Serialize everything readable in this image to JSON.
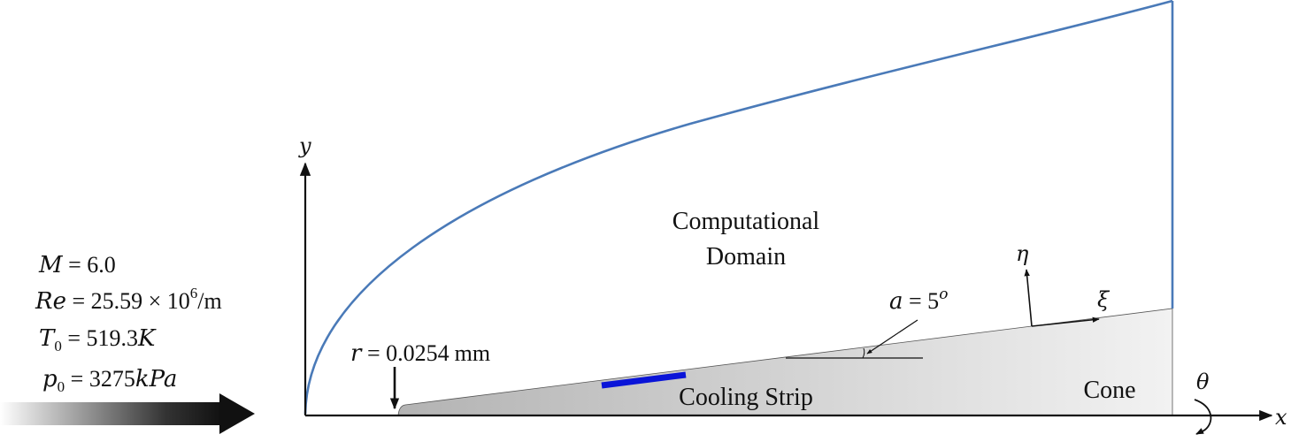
{
  "diagram": {
    "axes": {
      "x": "x",
      "y": "y",
      "theta": "θ"
    },
    "flow_conditions": {
      "mach": {
        "symbol": "M",
        "rest": " = 6.0"
      },
      "reynolds": {
        "symbol": "Re",
        "rest": " = 25.59 × 10",
        "exp": "6",
        "unit": "/m"
      },
      "temperature": {
        "symbol": "T",
        "sub": "0",
        "rest": " = 519.3",
        "unit": "K"
      },
      "pressure": {
        "symbol": "p",
        "sub": "0",
        "rest": " = 3275",
        "unit": "kPa"
      }
    },
    "nose_radius": {
      "symbol": "r",
      "rest": " = 0.0254",
      "unit": "mm"
    },
    "half_angle": {
      "symbol": "a",
      "rest": " = 5",
      "exp": "o"
    },
    "body_coords": {
      "xi": "ξ",
      "eta": "η"
    },
    "labels": {
      "domain_line1": "Computational",
      "domain_line2": "Domain",
      "cooling_strip": "Cooling Strip",
      "cone": "Cone"
    },
    "colors": {
      "domain_boundary": "#4a7ab8",
      "cooling_strip": "#0a14d8",
      "cone_fill_dark": "#b8b8b8",
      "cone_fill_light": "#f2f2f2",
      "ink": "#111111"
    }
  }
}
